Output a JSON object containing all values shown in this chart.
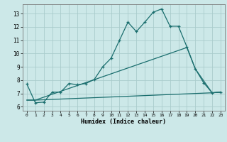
{
  "title": "",
  "xlabel": "Humidex (Indice chaleur)",
  "bg_color": "#cce8e8",
  "grid_color": "#aacccc",
  "line_color": "#1a6e6e",
  "xlim": [
    -0.5,
    23.5
  ],
  "ylim": [
    5.7,
    13.7
  ],
  "xticks": [
    0,
    1,
    2,
    3,
    4,
    5,
    6,
    7,
    8,
    9,
    10,
    11,
    12,
    13,
    14,
    15,
    16,
    17,
    18,
    19,
    20,
    21,
    22,
    23
  ],
  "yticks": [
    6,
    7,
    8,
    9,
    10,
    11,
    12,
    13
  ],
  "line1_x": [
    0,
    1,
    2,
    3,
    4,
    5,
    6,
    7,
    8,
    9,
    10,
    11,
    12,
    13,
    14,
    15,
    16,
    17,
    18,
    19,
    20,
    21,
    22,
    23
  ],
  "line1_y": [
    7.7,
    6.3,
    6.35,
    7.1,
    7.1,
    7.75,
    7.65,
    7.75,
    8.05,
    9.0,
    9.65,
    11.0,
    12.35,
    11.65,
    12.35,
    13.1,
    13.35,
    12.05,
    12.05,
    10.5,
    8.85,
    7.8,
    7.05,
    7.1
  ],
  "line2_x": [
    0,
    1,
    22,
    23
  ],
  "line2_y": [
    6.5,
    6.5,
    7.05,
    7.1
  ],
  "line3_x": [
    0,
    1,
    19,
    20,
    22,
    23
  ],
  "line3_y": [
    6.5,
    6.5,
    10.45,
    8.85,
    7.05,
    7.1
  ]
}
